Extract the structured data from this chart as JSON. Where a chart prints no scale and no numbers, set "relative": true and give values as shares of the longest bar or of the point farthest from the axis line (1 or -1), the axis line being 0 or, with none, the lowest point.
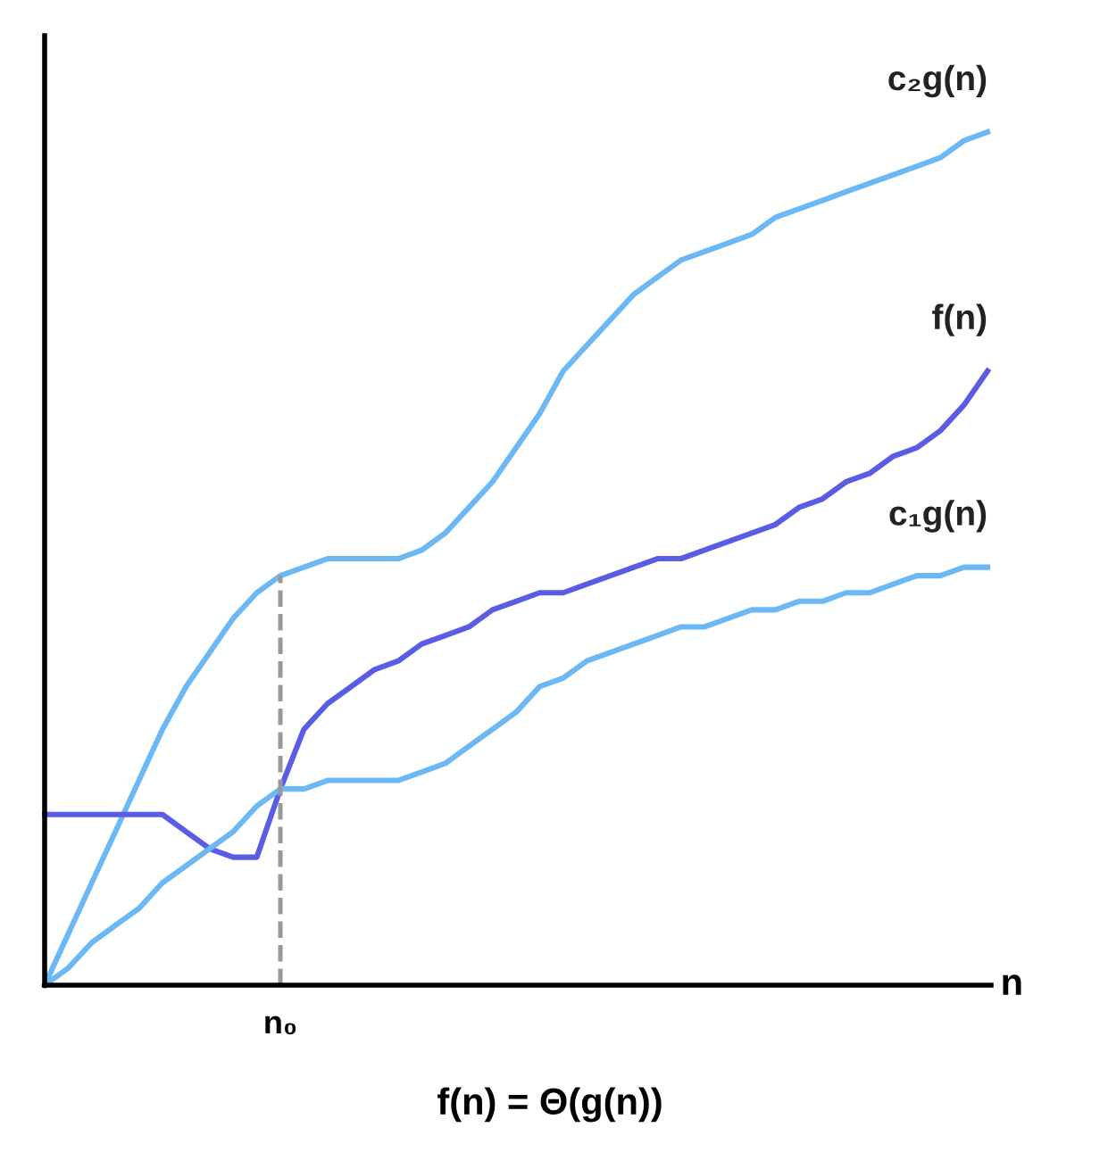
{
  "chart_data": {
    "type": "line",
    "relative": true,
    "xlabel": "n",
    "annotations": [
      "n₀",
      "f(n) = Θ(g(n))"
    ],
    "categories": [
      null,
      null,
      null,
      null,
      null,
      null,
      null,
      null,
      null,
      null,
      null,
      null,
      null,
      null,
      null,
      null,
      null,
      null,
      null,
      null,
      null,
      null,
      null,
      null,
      null,
      null,
      null,
      null,
      null,
      null,
      null,
      null,
      null,
      null,
      null,
      null,
      null,
      null,
      null,
      null,
      null
    ],
    "series": [
      {
        "name": "c₂g(n)",
        "color": "#6cb8f5",
        "values": [
          0,
          0.06,
          0.12,
          0.18,
          0.24,
          0.3,
          0.35,
          0.39,
          0.43,
          0.46,
          0.48,
          0.49,
          0.5,
          0.5,
          0.5,
          0.5,
          0.51,
          0.53,
          0.56,
          0.59,
          0.63,
          0.67,
          0.72,
          0.75,
          0.78,
          0.81,
          0.83,
          0.85,
          0.86,
          0.87,
          0.88,
          0.9,
          0.91,
          0.92,
          0.93,
          0.94,
          0.95,
          0.96,
          0.97,
          0.99,
          1
        ]
      },
      {
        "name": "f(n)",
        "color": "#5b5ce6",
        "values": [
          0.2,
          0.2,
          0.2,
          0.2,
          0.2,
          0.2,
          0.18,
          0.16,
          0.15,
          0.15,
          0.23,
          0.3,
          0.33,
          0.35,
          0.37,
          0.38,
          0.4,
          0.41,
          0.42,
          0.44,
          0.45,
          0.46,
          0.46,
          0.47,
          0.48,
          0.49,
          0.5,
          0.5,
          0.51,
          0.52,
          0.53,
          0.54,
          0.56,
          0.57,
          0.59,
          0.6,
          0.62,
          0.63,
          0.65,
          0.68,
          0.72
        ]
      },
      {
        "name": "c₁g(n)",
        "color": "#6cb8f5",
        "values": [
          0,
          0.02,
          0.05,
          0.07,
          0.09,
          0.12,
          0.14,
          0.16,
          0.18,
          0.21,
          0.23,
          0.23,
          0.24,
          0.24,
          0.24,
          0.24,
          0.25,
          0.26,
          0.28,
          0.3,
          0.32,
          0.35,
          0.36,
          0.38,
          0.39,
          0.4,
          0.41,
          0.42,
          0.42,
          0.43,
          0.44,
          0.44,
          0.45,
          0.45,
          0.46,
          0.46,
          0.47,
          0.48,
          0.48,
          0.49,
          0.49
        ]
      }
    ],
    "legend": false,
    "marker": "none",
    "line_style": "solid"
  }
}
